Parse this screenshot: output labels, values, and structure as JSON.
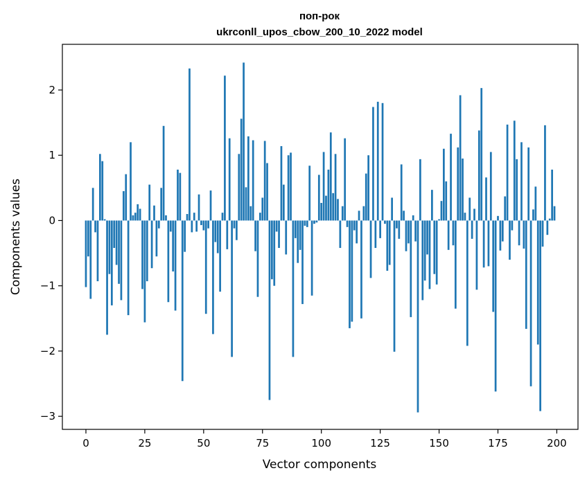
{
  "chart_data": {
    "type": "bar",
    "title_line1": "поп-рок",
    "title_line2": "ukrconll_upos_cbow_200_10_2022 model",
    "xlabel": "Vector components",
    "ylabel": "Components values",
    "xlim": [
      -10,
      209
    ],
    "ylim": [
      -3.2,
      2.7
    ],
    "xticks": [
      0,
      25,
      50,
      75,
      100,
      125,
      150,
      175,
      200
    ],
    "yticks": [
      -3,
      -2,
      -1,
      0,
      1,
      2
    ],
    "ytick_labels": [
      "−3",
      "−2",
      "−1",
      "0",
      "1",
      "2"
    ],
    "grid": false,
    "color": "#1f77b4",
    "values": [
      -1.02,
      -0.55,
      -1.2,
      0.5,
      -0.18,
      -0.93,
      1.02,
      0.91,
      0.02,
      -1.75,
      -0.82,
      -1.3,
      -0.42,
      -0.68,
      -0.97,
      -1.22,
      0.45,
      0.71,
      -1.45,
      1.2,
      0.08,
      0.12,
      0.25,
      0.18,
      -1.05,
      -1.56,
      -0.93,
      0.55,
      -0.73,
      0.23,
      -0.55,
      -0.12,
      0.5,
      1.45,
      0.08,
      -1.25,
      -0.17,
      -0.78,
      -1.38,
      0.78,
      0.73,
      -2.46,
      -0.48,
      0.1,
      2.33,
      -0.18,
      0.12,
      -0.17,
      0.4,
      -0.07,
      -0.15,
      -1.43,
      -0.12,
      0.46,
      -1.74,
      -0.33,
      -0.5,
      -1.09,
      0.12,
      2.22,
      -0.44,
      1.26,
      -2.09,
      -0.12,
      -0.3,
      1.02,
      1.56,
      2.42,
      0.51,
      1.29,
      0.22,
      1.23,
      -0.47,
      -1.17,
      0.12,
      0.35,
      1.22,
      0.88,
      -2.75,
      -0.9,
      -1.0,
      -0.17,
      -0.42,
      1.14,
      0.55,
      -0.52,
      1.0,
      1.04,
      -2.09,
      -0.27,
      -0.65,
      -0.45,
      -1.28,
      -0.08,
      -0.1,
      0.84,
      -1.15,
      -0.05,
      -0.03,
      0.7,
      0.27,
      1.05,
      0.38,
      0.78,
      1.35,
      0.42,
      1.02,
      0.33,
      -0.42,
      0.22,
      1.26,
      -0.1,
      -1.65,
      -1.55,
      -0.15,
      -0.35,
      0.15,
      -1.5,
      0.22,
      0.72,
      1.0,
      -0.88,
      1.74,
      -0.42,
      1.82,
      -0.27,
      1.8,
      -0.05,
      -0.77,
      -0.68,
      0.35,
      -2.01,
      -0.12,
      -0.28,
      0.86,
      0.15,
      -0.47,
      -0.35,
      -1.48,
      0.08,
      -0.32,
      -2.94,
      0.94,
      -1.22,
      -0.92,
      -0.52,
      -1.05,
      0.47,
      -0.82,
      -0.98,
      0.02,
      0.3,
      1.1,
      0.6,
      -0.45,
      1.33,
      -0.38,
      -1.35,
      1.12,
      1.92,
      0.95,
      0.12,
      -1.92,
      0.35,
      -0.28,
      0.18,
      -1.06,
      1.38,
      2.03,
      -0.72,
      0.66,
      -0.7,
      1.05,
      -1.4,
      -2.62,
      0.07,
      -0.46,
      -0.32,
      0.37,
      1.47,
      -0.6,
      -0.15,
      1.53,
      0.94,
      -0.38,
      1.2,
      -0.43,
      -1.66,
      1.12,
      -2.54,
      0.17,
      0.52,
      -1.9,
      -2.92,
      -0.4,
      1.46,
      -0.22,
      0.03,
      0.78,
      0.22
    ]
  }
}
